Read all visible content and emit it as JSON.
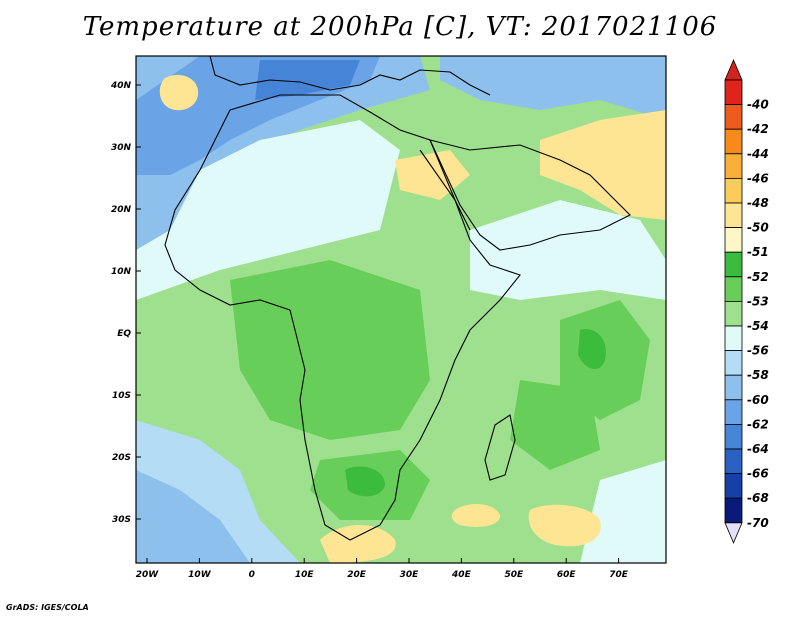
{
  "title": "Temperature at 200hPa [C], VT: 2017021106",
  "credit": "GrADS: IGES/COLA",
  "map": {
    "lon_labels": [
      "20W",
      "10W",
      "0",
      "10E",
      "20E",
      "30E",
      "40E",
      "50E",
      "60E",
      "70E"
    ],
    "lat_labels": [
      "40N",
      "30N",
      "20N",
      "10N",
      "EQ",
      "10S",
      "20S",
      "30S"
    ]
  },
  "colorbar": {
    "labels": [
      "-40",
      "-42",
      "-44",
      "-46",
      "-48",
      "-50",
      "-51",
      "-52",
      "-53",
      "-54",
      "-56",
      "-58",
      "-60",
      "-62",
      "-64",
      "-66",
      "-68",
      "-70"
    ],
    "colors": [
      "#e0241c",
      "#ee5b1c",
      "#f88a1c",
      "#fab038",
      "#fbcc5a",
      "#fde593",
      "#fdf6c6",
      "#3cbc3c",
      "#68ce5a",
      "#9ee08e",
      "#e0fafa",
      "#b4dcf5",
      "#8ec0ee",
      "#6aa4e6",
      "#4684d8",
      "#2a62c4",
      "#1540a8",
      "#0a1a78"
    ],
    "top_arrow_color": "#d2241c",
    "bottom_arrow_color": "#e6e0fa"
  }
}
